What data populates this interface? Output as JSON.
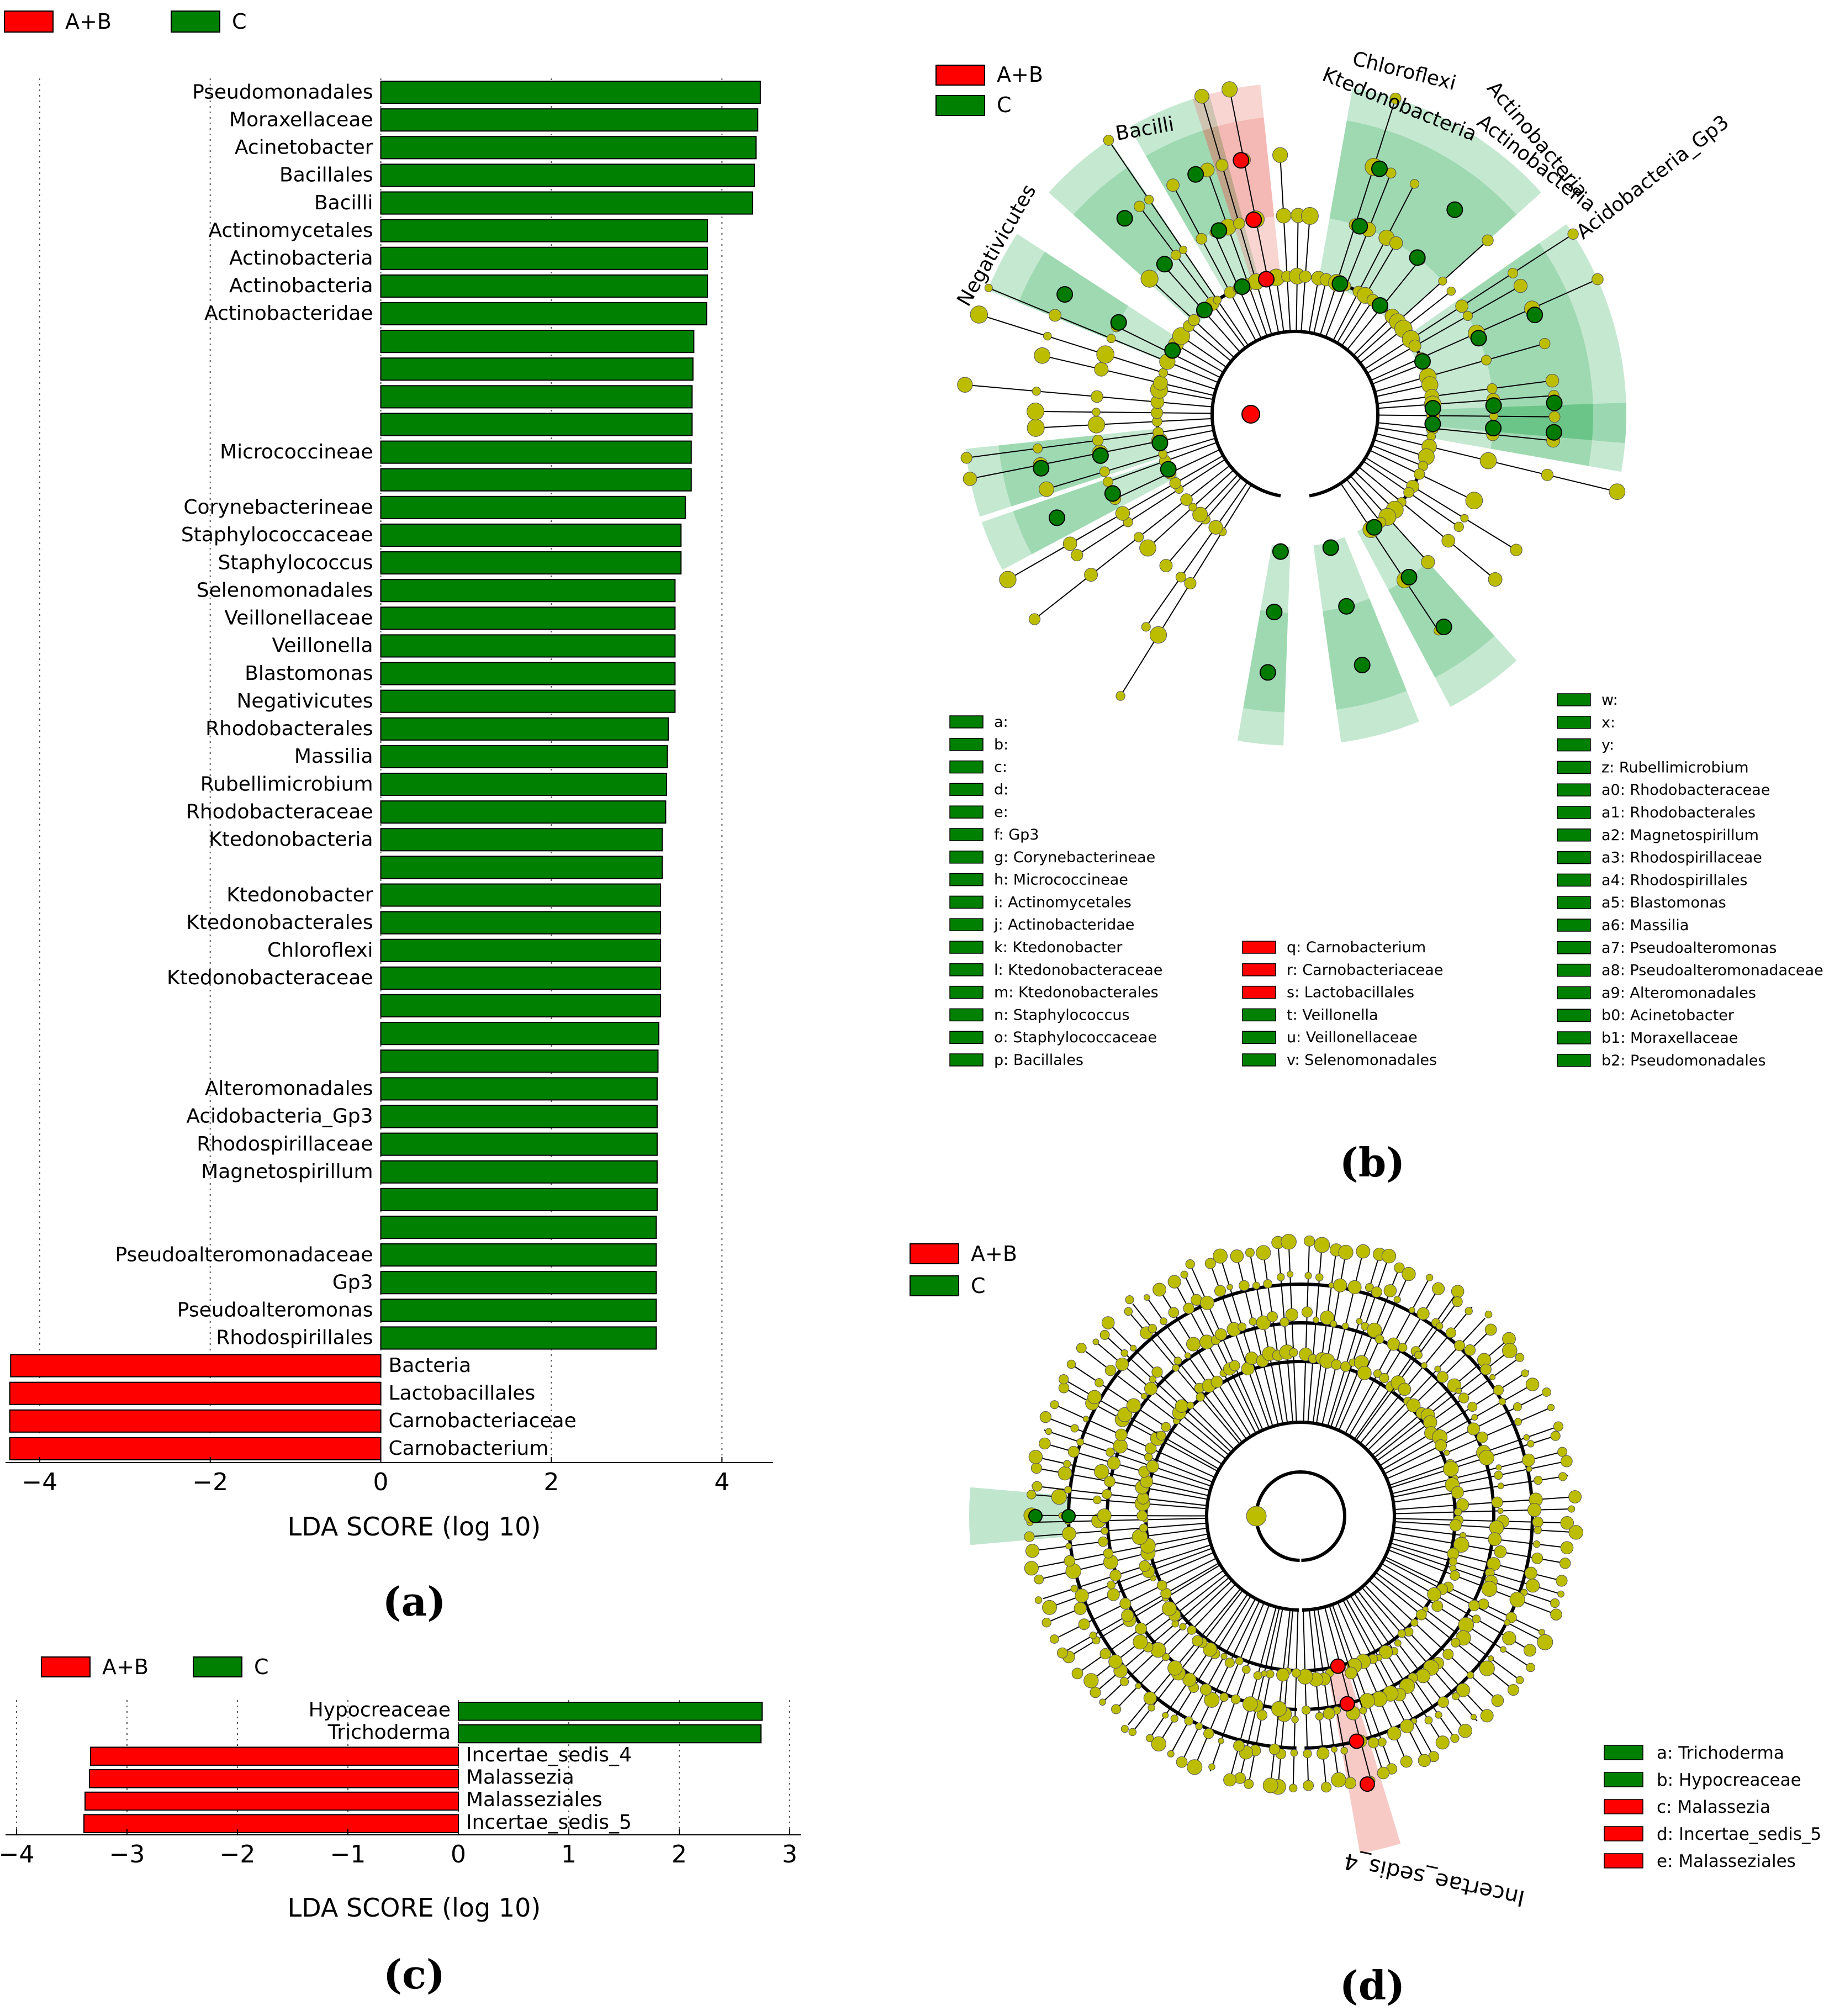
{
  "colors": {
    "ab": "#ff0000",
    "c": "#008000",
    "node": "#bdbd00",
    "green_shade": "#2ead59",
    "red_shade": "#e8675c"
  },
  "legend_groups": [
    "A+B",
    "C"
  ],
  "captions": {
    "a": "(a)",
    "b": "(b)",
    "c": "(c)",
    "d": "(d)"
  },
  "chart_data": [
    {
      "id": "a",
      "type": "bar",
      "orientation": "horizontal",
      "xlabel": "LDA SCORE (log 10)",
      "xlim": [
        -4.4,
        4.6
      ],
      "xticks": [
        -4,
        -2,
        0,
        2,
        4
      ],
      "xtick_labels": [
        "−4",
        "−2",
        "0",
        "2",
        "4"
      ],
      "bars": [
        {
          "label": "Pseudomonadales",
          "value": 4.45,
          "group": "C"
        },
        {
          "label": "Moraxellaceae",
          "value": 4.42,
          "group": "C"
        },
        {
          "label": "Acinetobacter",
          "value": 4.4,
          "group": "C"
        },
        {
          "label": "Bacillales",
          "value": 4.38,
          "group": "C"
        },
        {
          "label": "Bacilli",
          "value": 4.36,
          "group": "C"
        },
        {
          "label": "Actinomycetales",
          "value": 3.83,
          "group": "C"
        },
        {
          "label": "Actinobacteria",
          "value": 3.83,
          "group": "C"
        },
        {
          "label": "Actinobacteria",
          "value": 3.83,
          "group": "C"
        },
        {
          "label": "Actinobacteridae",
          "value": 3.82,
          "group": "C"
        },
        {
          "label": "",
          "value": 3.67,
          "group": "C"
        },
        {
          "label": "",
          "value": 3.66,
          "group": "C"
        },
        {
          "label": "",
          "value": 3.65,
          "group": "C"
        },
        {
          "label": "",
          "value": 3.65,
          "group": "C"
        },
        {
          "label": "Micrococcineae",
          "value": 3.64,
          "group": "C"
        },
        {
          "label": "",
          "value": 3.64,
          "group": "C"
        },
        {
          "label": "Corynebacterineae",
          "value": 3.57,
          "group": "C"
        },
        {
          "label": "Staphylococcaceae",
          "value": 3.52,
          "group": "C"
        },
        {
          "label": "Staphylococcus",
          "value": 3.52,
          "group": "C"
        },
        {
          "label": "Selenomonadales",
          "value": 3.45,
          "group": "C"
        },
        {
          "label": "Veillonellaceae",
          "value": 3.45,
          "group": "C"
        },
        {
          "label": "Veillonella",
          "value": 3.45,
          "group": "C"
        },
        {
          "label": "Blastomonas",
          "value": 3.45,
          "group": "C"
        },
        {
          "label": "Negativicutes",
          "value": 3.45,
          "group": "C"
        },
        {
          "label": "Rhodobacterales",
          "value": 3.37,
          "group": "C"
        },
        {
          "label": "Massilia",
          "value": 3.36,
          "group": "C"
        },
        {
          "label": "Rubellimicrobium",
          "value": 3.35,
          "group": "C"
        },
        {
          "label": "Rhodobacteraceae",
          "value": 3.34,
          "group": "C"
        },
        {
          "label": "Ktedonobacteria",
          "value": 3.3,
          "group": "C"
        },
        {
          "label": "",
          "value": 3.3,
          "group": "C"
        },
        {
          "label": "Ktedonobacter",
          "value": 3.28,
          "group": "C"
        },
        {
          "label": "Ktedonobacterales",
          "value": 3.28,
          "group": "C"
        },
        {
          "label": "Chloroflexi",
          "value": 3.28,
          "group": "C"
        },
        {
          "label": "Ktedonobacteraceae",
          "value": 3.28,
          "group": "C"
        },
        {
          "label": "",
          "value": 3.28,
          "group": "C"
        },
        {
          "label": "",
          "value": 3.26,
          "group": "C"
        },
        {
          "label": "",
          "value": 3.25,
          "group": "C"
        },
        {
          "label": "Alteromonadales",
          "value": 3.24,
          "group": "C"
        },
        {
          "label": "Acidobacteria_Gp3",
          "value": 3.24,
          "group": "C"
        },
        {
          "label": "Rhodospirillaceae",
          "value": 3.24,
          "group": "C"
        },
        {
          "label": "Magnetospirillum",
          "value": 3.24,
          "group": "C"
        },
        {
          "label": "",
          "value": 3.24,
          "group": "C"
        },
        {
          "label": "",
          "value": 3.23,
          "group": "C"
        },
        {
          "label": "Pseudoalteromonadaceae",
          "value": 3.23,
          "group": "C"
        },
        {
          "label": "Gp3",
          "value": 3.23,
          "group": "C"
        },
        {
          "label": "Pseudoalteromonas",
          "value": 3.23,
          "group": "C"
        },
        {
          "label": "Rhodospirillales",
          "value": 3.23,
          "group": "C"
        },
        {
          "label": "Bacteria",
          "value": -4.34,
          "group": "A+B"
        },
        {
          "label": "Lactobacillales",
          "value": -4.35,
          "group": "A+B"
        },
        {
          "label": "Carnobacteriaceae",
          "value": -4.35,
          "group": "A+B"
        },
        {
          "label": "Carnobacterium",
          "value": -4.35,
          "group": "A+B"
        }
      ]
    },
    {
      "id": "c",
      "type": "bar",
      "orientation": "horizontal",
      "xlabel": "LDA SCORE (log 10)",
      "xlim": [
        -4.1,
        3.1
      ],
      "xticks": [
        -4,
        -3,
        -2,
        -1,
        0,
        1,
        2,
        3
      ],
      "xtick_labels": [
        "−4",
        "−3",
        "−2",
        "−1",
        "0",
        "1",
        "2",
        "3"
      ],
      "bars": [
        {
          "label": "Hypocreaceae",
          "value": 2.75,
          "group": "C"
        },
        {
          "label": "Trichoderma",
          "value": 2.74,
          "group": "C"
        },
        {
          "label": "Incertae_sedis_4",
          "value": -3.33,
          "group": "A+B"
        },
        {
          "label": "Malassezia",
          "value": -3.34,
          "group": "A+B"
        },
        {
          "label": "Malasseziales",
          "value": -3.38,
          "group": "A+B"
        },
        {
          "label": "Incertae_sedis_5",
          "value": -3.39,
          "group": "A+B"
        }
      ]
    },
    {
      "id": "b",
      "type": "cladogram",
      "clade_labels": [
        "Chloroflexi",
        "Ktedonobacteria",
        "Actinobacteria",
        "Actinobacteria",
        "Acidobacteria_Gp3",
        "Bacilli",
        "Negativicutes"
      ],
      "legend_col1": [
        "a:",
        "b:",
        "c:",
        "d:",
        "e:",
        "f: Gp3",
        "g: Corynebacterineae",
        "h: Micrococcineae",
        "i: Actinomycetales",
        "j: Actinobacteridae",
        "k: Ktedonobacter",
        "l: Ktedonobacteraceae",
        "m: Ktedonobacterales",
        "n: Staphylococcus",
        "o: Staphylococcaceae",
        "p: Bacillales"
      ],
      "legend_col2": [
        {
          "text": "q: Carnobacterium",
          "group": "A+B"
        },
        {
          "text": "r: Carnobacteriaceae",
          "group": "A+B"
        },
        {
          "text": "s: Lactobacillales",
          "group": "A+B"
        },
        {
          "text": "t: Veillonella",
          "group": "C"
        },
        {
          "text": "u: Veillonellaceae",
          "group": "C"
        },
        {
          "text": "v: Selenomonadales",
          "group": "C"
        }
      ],
      "legend_col3": [
        "w:",
        "x:",
        "y:",
        "z: Rubellimicrobium",
        "a0: Rhodobacteraceae",
        "a1: Rhodobacterales",
        "a2: Magnetospirillum",
        "a3: Rhodospirillaceae",
        "a4: Rhodospirillales",
        "a5: Blastomonas",
        "a6: Massilia",
        "a7: Pseudoalteromonas",
        "a8: Pseudoalteromonadaceae",
        "a9: Alteromonadales",
        "b0: Acinetobacter",
        "b1: Moraxellaceae",
        "b2: Pseudomonadales"
      ]
    },
    {
      "id": "d",
      "type": "cladogram",
      "clade_labels": [
        "Incertae_sedis_4"
      ],
      "legend": [
        {
          "text": "a: Trichoderma",
          "group": "C"
        },
        {
          "text": "b: Hypocreaceae",
          "group": "C"
        },
        {
          "text": "c: Malassezia",
          "group": "A+B"
        },
        {
          "text": "d: Incertae_sedis_5",
          "group": "A+B"
        },
        {
          "text": "e: Malasseziales",
          "group": "A+B"
        }
      ]
    }
  ]
}
